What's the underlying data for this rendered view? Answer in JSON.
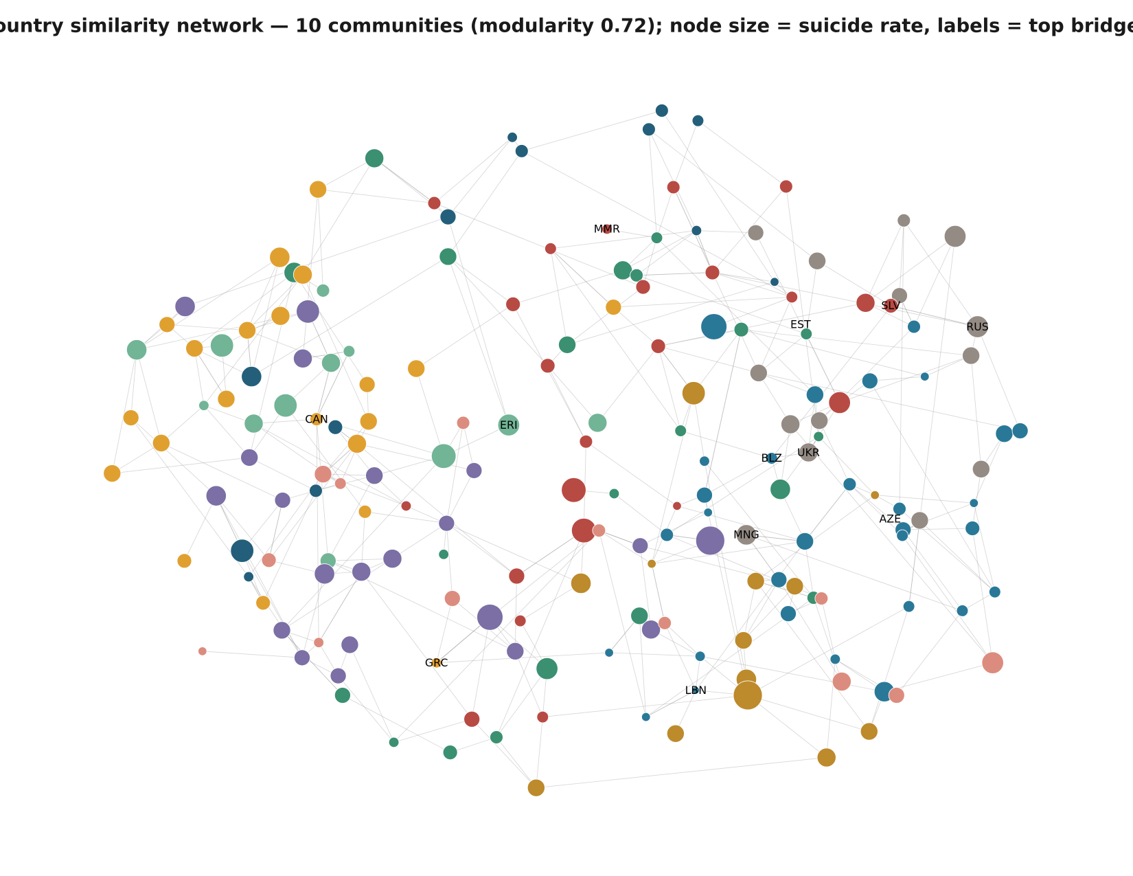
{
  "title": "ountry similarity network — 10 communities (modularity 0.72); node size = suicide rate, labels = top bridge",
  "labels": [
    "MMR",
    "SLV",
    "EST",
    "RUS",
    "CAN",
    "ERI",
    "BLZ",
    "UKR",
    "AZE",
    "MNG",
    "GRC",
    "LBN"
  ]
}
